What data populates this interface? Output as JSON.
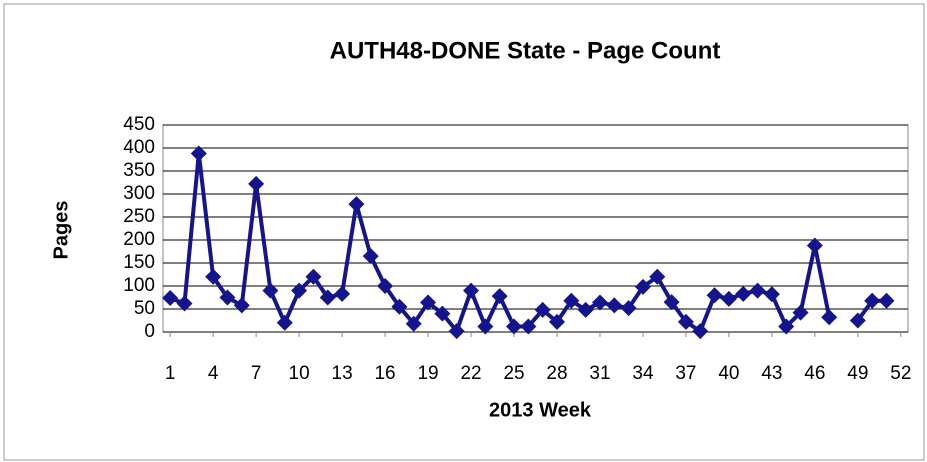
{
  "chart_data": {
    "type": "line",
    "title": "AUTH48-DONE State - Page Count",
    "x_label": "2013 Week",
    "y_label": "Pages",
    "x": [
      1,
      2,
      3,
      4,
      5,
      6,
      7,
      8,
      9,
      10,
      11,
      12,
      13,
      14,
      15,
      16,
      17,
      18,
      19,
      20,
      21,
      22,
      23,
      24,
      25,
      26,
      27,
      28,
      29,
      30,
      31,
      32,
      33,
      34,
      35,
      36,
      37,
      38,
      39,
      40,
      41,
      42,
      43,
      44,
      45,
      46,
      47,
      48,
      49,
      50,
      51,
      52
    ],
    "series": [
      {
        "name": "Pages",
        "color": "#14148c",
        "values": [
          74,
          62,
          388,
          120,
          75,
          58,
          322,
          90,
          20,
          90,
          120,
          75,
          83,
          278,
          165,
          100,
          55,
          18,
          64,
          40,
          2,
          90,
          12,
          78,
          12,
          12,
          48,
          22,
          68,
          48,
          64,
          58,
          52,
          98,
          120,
          65,
          22,
          2,
          80,
          72,
          83,
          90,
          82,
          12,
          42,
          188,
          32,
          null,
          25,
          68,
          68,
          null
        ]
      }
    ],
    "xlim": [
      0.5,
      52.5
    ],
    "xticks": [
      1,
      4,
      7,
      10,
      13,
      16,
      19,
      22,
      25,
      28,
      31,
      34,
      37,
      40,
      43,
      46,
      49,
      52
    ],
    "ylim": [
      0,
      450
    ],
    "yticks": [
      0,
      50,
      100,
      150,
      200,
      250,
      300,
      350,
      400,
      450
    ],
    "grid": true
  }
}
